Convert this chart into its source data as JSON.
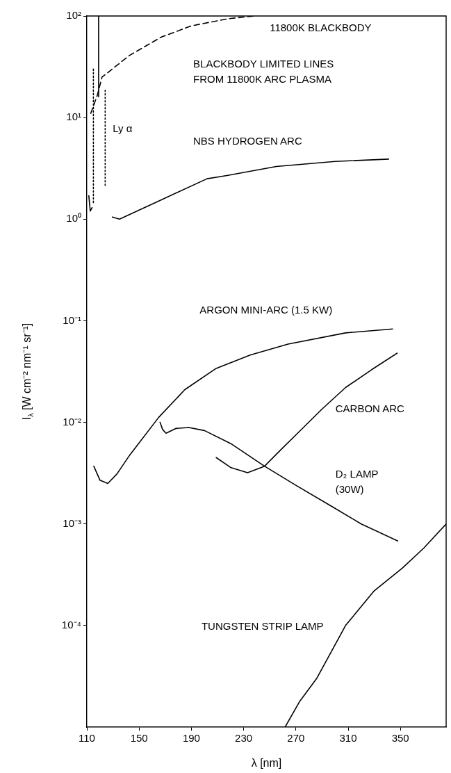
{
  "chart_data": {
    "type": "line",
    "xlabel": "λ [nm]",
    "ylabel": "I$_{λ}$ [W cm⁻² nm⁻¹ sr⁻¹]",
    "xlim": [
      110,
      385
    ],
    "ylim": [
      1e-05,
      100
    ],
    "xticks": [
      110,
      150,
      190,
      230,
      270,
      310,
      350
    ],
    "yticks": [
      {
        "value": 0.0001,
        "label": "10⁻⁴"
      },
      {
        "value": 0.001,
        "label": "10⁻³"
      },
      {
        "value": 0.01,
        "label": "10⁻²"
      },
      {
        "value": 0.1,
        "label": "10⁻¹"
      },
      {
        "value": 1,
        "label": "10⁰"
      },
      {
        "value": 10,
        "label": "10¹"
      },
      {
        "value": 100,
        "label": "10²"
      }
    ],
    "log": "y",
    "grid": false,
    "marker": "none",
    "series": [
      {
        "name": "11800K BLACKBODY",
        "color": "#000000",
        "line_style": "dashed",
        "x": [
          113,
          118,
          121.6,
          142.7,
          167,
          190,
          218,
          238
        ],
        "values": [
          11,
          16.6,
          25,
          41,
          62,
          80,
          94,
          100
        ]
      },
      {
        "color": "#000000",
        "line_style": "dotted",
        "x": [
          115,
          115,
          119,
          124,
          124
        ],
        "values": [
          30,
          1.4,
          null,
          18.6,
          2.1
        ]
      },
      {
        "color": "#000000",
        "line_style": "solid",
        "x": [
          111.5,
          112.6,
          114,
          115,
          119,
          119
        ],
        "values": [
          1.7,
          1.2,
          1.3,
          null,
          16,
          100
        ]
      },
      {
        "name": "NBS HYDROGEN ARC",
        "color": "#000000",
        "line_style": "solid",
        "x": [
          129.5,
          135,
          167,
          202,
          218,
          255,
          300,
          341
        ],
        "values": [
          1.05,
          1.0,
          1.55,
          2.5,
          2.7,
          3.3,
          3.7,
          3.9
        ]
      },
      {
        "name": "ARGON MINI-ARC (1.5 KW)",
        "color": "#000000",
        "line_style": "solid",
        "x": [
          115.3,
          120,
          126,
          133,
          143,
          165,
          185,
          209,
          235,
          264,
          308,
          344
        ],
        "values": [
          0.0037,
          0.0027,
          0.0025,
          0.0031,
          0.0048,
          0.0112,
          0.021,
          0.034,
          0.046,
          0.059,
          0.076,
          0.083
        ]
      },
      {
        "name": "D₂ LAMP\n(30W)",
        "color": "#000000",
        "line_style": "solid",
        "x": [
          166,
          168,
          170.6,
          178,
          188,
          200,
          220,
          246,
          270,
          297,
          320,
          348
        ],
        "values": [
          0.01,
          0.0085,
          0.0078,
          0.0087,
          0.0089,
          0.0083,
          0.0062,
          0.0037,
          0.0024,
          0.0015,
          0.001,
          0.00068
        ]
      },
      {
        "name": "CARBON ARC",
        "color": "#000000",
        "line_style": "solid",
        "x": [
          209,
          220,
          233,
          246,
          258,
          272.5,
          290,
          308,
          328,
          347.5
        ],
        "values": [
          0.0045,
          0.0036,
          0.0032,
          0.0037,
          0.0053,
          0.0081,
          0.0135,
          0.022,
          0.033,
          0.048
        ]
      },
      {
        "name": "TUNGSTEN STRIP LAMP",
        "color": "#000000",
        "line_style": "solid",
        "x": [
          261.7,
          273,
          285.8,
          297,
          308,
          330,
          351.7,
          368,
          385
        ],
        "values": [
          1e-05,
          1.8e-05,
          3e-05,
          5.5e-05,
          0.0001,
          0.00022,
          0.00037,
          0.00058,
          0.001
        ]
      }
    ],
    "annotations": [
      "BLACKBODY LIMITED LINES\nFROM 11800K ARC PLASMA",
      "Ly α"
    ]
  }
}
